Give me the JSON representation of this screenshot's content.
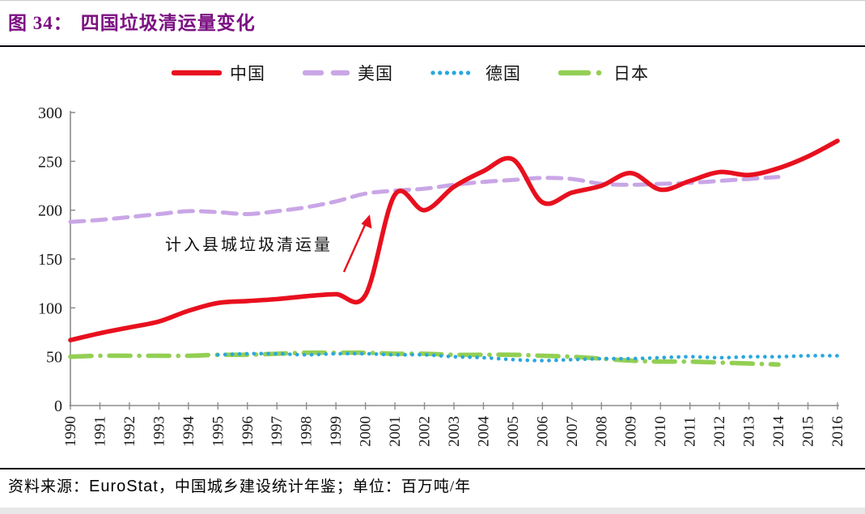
{
  "header": {
    "figure_label": "图 34：",
    "title": "四国垃圾清运量变化",
    "title_color": "#7c1082"
  },
  "legend": {
    "position": "top-center",
    "items": [
      {
        "id": "china",
        "label": "中国",
        "color": "#e8101e",
        "style": "solid"
      },
      {
        "id": "usa",
        "label": "美国",
        "color": "#c9a6e6",
        "style": "dashed"
      },
      {
        "id": "germany",
        "label": "德国",
        "color": "#2aa7df",
        "style": "dotted"
      },
      {
        "id": "japan",
        "label": "日本",
        "color": "#93cf53",
        "style": "dash-dot"
      }
    ]
  },
  "annotation": {
    "text": "计入县城垃圾清运量"
  },
  "footer": {
    "prefix": "资料来源：",
    "source_en": "EuroStat",
    "suffix": "，中国城乡建设统计年鉴；单位：百万吨/年"
  },
  "chart_data": {
    "type": "line",
    "title": "四国垃圾清运量变化",
    "xlabel": "",
    "ylabel": "",
    "unit": "百万吨/年",
    "grid": false,
    "legend_position": "top-center",
    "ylim": [
      0,
      300
    ],
    "yticks": [
      0,
      50,
      100,
      150,
      200,
      250,
      300
    ],
    "years": [
      1990,
      1991,
      1992,
      1993,
      1994,
      1995,
      1996,
      1997,
      1998,
      1999,
      2000,
      2001,
      2002,
      2003,
      2004,
      2005,
      2006,
      2007,
      2008,
      2009,
      2010,
      2011,
      2012,
      2013,
      2014,
      2015,
      2016
    ],
    "series": [
      {
        "id": "japan",
        "name": "日本",
        "color": "#93cf53",
        "style": "dash-dot",
        "start_year": 1990,
        "values": [
          50,
          51,
          51,
          51,
          51,
          52,
          52,
          53,
          54,
          54,
          54,
          53,
          53,
          52,
          52,
          52,
          51,
          50,
          48,
          46,
          45,
          45,
          44,
          43,
          42
        ]
      },
      {
        "id": "germany",
        "name": "德国",
        "color": "#2aa7df",
        "style": "dotted",
        "start_year": 1995,
        "values": [
          52,
          53,
          53,
          52,
          53,
          53,
          52,
          52,
          50,
          49,
          47,
          46,
          47,
          48,
          48,
          49,
          50,
          49,
          50,
          50,
          51,
          51
        ]
      },
      {
        "id": "usa",
        "name": "美国",
        "color": "#c9a6e6",
        "style": "dashed",
        "start_year": 1990,
        "values": [
          188,
          190,
          193,
          196,
          199,
          198,
          196,
          199,
          203,
          209,
          217,
          220,
          222,
          226,
          229,
          231,
          233,
          232,
          227,
          226,
          227,
          228,
          230,
          232,
          234
        ]
      },
      {
        "id": "china",
        "name": "中国",
        "color": "#e8101e",
        "style": "solid",
        "start_year": 1990,
        "values": [
          67,
          74,
          80,
          86,
          97,
          105,
          107,
          109,
          112,
          114,
          113,
          216,
          200,
          224,
          240,
          252,
          208,
          218,
          225,
          238,
          221,
          230,
          239,
          236,
          243,
          255,
          271
        ]
      }
    ],
    "annotation": {
      "text": "计入县城垃圾清运量",
      "points_to": "2001 jump of China series"
    }
  }
}
